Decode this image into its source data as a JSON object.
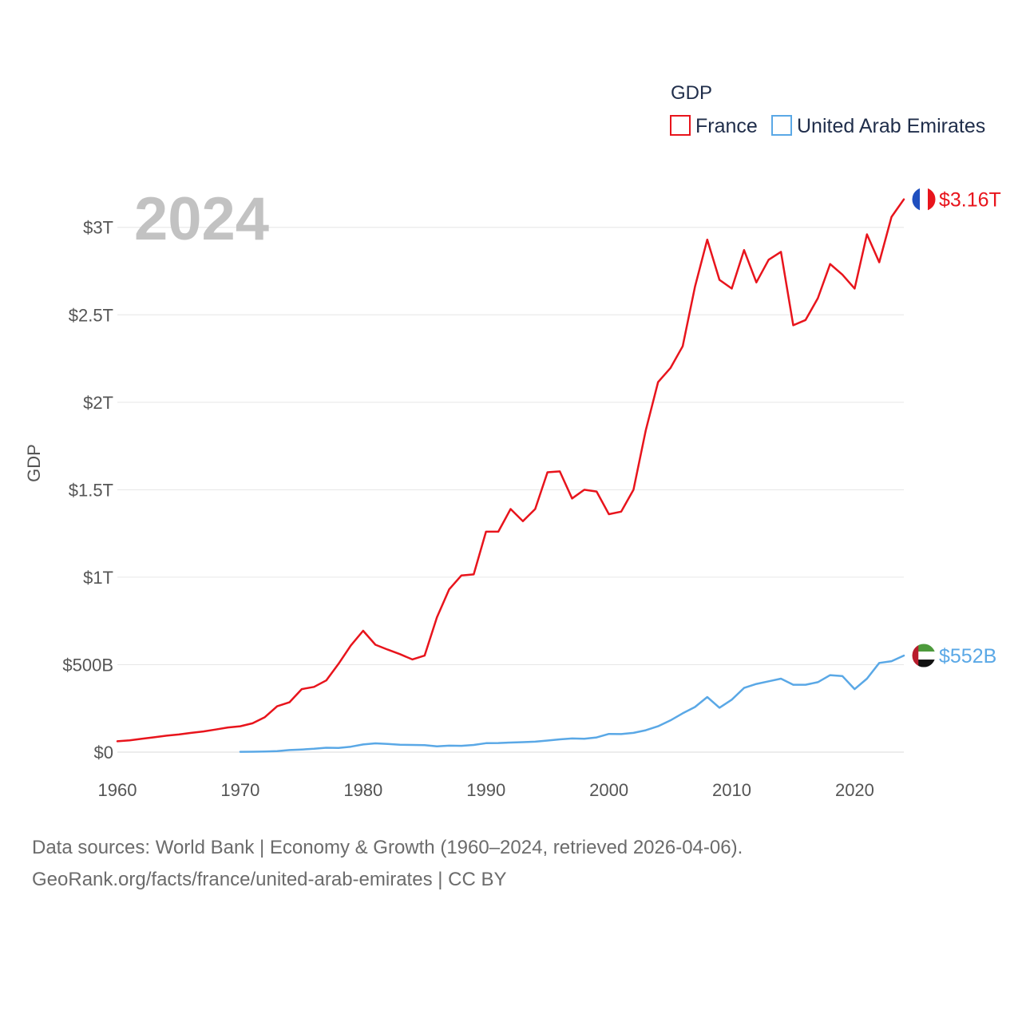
{
  "chart_data": {
    "type": "line",
    "legend_title": "GDP",
    "ylabel": "GDP",
    "watermark_year": "2024",
    "xlim": [
      1960,
      2024
    ],
    "ylim": [
      0,
      3300000000000
    ],
    "x_ticks": [
      {
        "value": 1960,
        "label": "1960"
      },
      {
        "value": 1970,
        "label": "1970"
      },
      {
        "value": 1980,
        "label": "1980"
      },
      {
        "value": 1990,
        "label": "1990"
      },
      {
        "value": 2000,
        "label": "2000"
      },
      {
        "value": 2010,
        "label": "2010"
      },
      {
        "value": 2020,
        "label": "2020"
      }
    ],
    "y_ticks": [
      {
        "value": 0,
        "label": "$0"
      },
      {
        "value": 500000000000,
        "label": "$500B"
      },
      {
        "value": 1000000000000,
        "label": "$1T"
      },
      {
        "value": 1500000000000,
        "label": "$1.5T"
      },
      {
        "value": 2000000000000,
        "label": "$2T"
      },
      {
        "value": 2500000000000,
        "label": "$2.5T"
      },
      {
        "value": 3000000000000,
        "label": "$3T"
      }
    ],
    "series": [
      {
        "name": "France",
        "color": "#e8141c",
        "end_label": "$3.16T",
        "flag": "france-flag",
        "x": [
          1960,
          1961,
          1962,
          1963,
          1964,
          1965,
          1966,
          1967,
          1968,
          1969,
          1970,
          1971,
          1972,
          1973,
          1974,
          1975,
          1976,
          1977,
          1978,
          1979,
          1980,
          1981,
          1982,
          1983,
          1984,
          1985,
          1986,
          1987,
          1988,
          1989,
          1990,
          1991,
          1992,
          1993,
          1994,
          1995,
          1996,
          1997,
          1998,
          1999,
          2000,
          2001,
          2002,
          2003,
          2004,
          2005,
          2006,
          2007,
          2008,
          2009,
          2010,
          2011,
          2012,
          2013,
          2014,
          2015,
          2016,
          2017,
          2018,
          2019,
          2020,
          2021,
          2022,
          2023,
          2024
        ],
        "values": [
          62000000000.0,
          67000000000.0,
          76000000000.0,
          85000000000.0,
          94000000000.0,
          101000000000.0,
          110000000000.0,
          118000000000.0,
          129000000000.0,
          141000000000.0,
          148000000000.0,
          165000000000.0,
          200000000000.0,
          262000000000.0,
          285000000000.0,
          360000000000.0,
          373000000000.0,
          410000000000.0,
          505000000000.0,
          610000000000.0,
          694000000000.0,
          614000000000.0,
          586000000000.0,
          560000000000.0,
          530000000000.0,
          552000000000.0,
          770000000000.0,
          930000000000.0,
          1010000000000.0,
          1016000000000.0,
          1260000000000.0,
          1260000000000.0,
          1390000000000.0,
          1320000000000.0,
          1390000000000.0,
          1600000000000.0,
          1605000000000.0,
          1450000000000.0,
          1500000000000.0,
          1490000000000.0,
          1360000000000.0,
          1375000000000.0,
          1500000000000.0,
          1840000000000.0,
          2115000000000.0,
          2195000000000.0,
          2320000000000.0,
          2660000000000.0,
          2930000000000.0,
          2700000000000.0,
          2650000000000.0,
          2870000000000.0,
          2685000000000.0,
          2815000000000.0,
          2860000000000.0,
          2440000000000.0,
          2470000000000.0,
          2595000000000.0,
          2790000000000.0,
          2730000000000.0,
          2650000000000.0,
          2960000000000.0,
          2800000000000.0,
          3060000000000.0,
          3160000000000.0
        ]
      },
      {
        "name": "United Arab Emirates",
        "color": "#5aa8e6",
        "end_label": "$552B",
        "flag": "uae-flag",
        "x": [
          1970,
          1971,
          1972,
          1973,
          1974,
          1975,
          1976,
          1977,
          1978,
          1979,
          1980,
          1981,
          1982,
          1983,
          1984,
          1985,
          1986,
          1987,
          1988,
          1989,
          1990,
          1991,
          1992,
          1993,
          1994,
          1995,
          1996,
          1997,
          1998,
          1999,
          2000,
          2001,
          2002,
          2003,
          2004,
          2005,
          2006,
          2007,
          2008,
          2009,
          2010,
          2011,
          2012,
          2013,
          2014,
          2015,
          2016,
          2017,
          2018,
          2019,
          2020,
          2021,
          2022,
          2023,
          2024
        ],
        "values": [
          2000000000.0,
          2500000000.0,
          3500000000.0,
          6000000000.0,
          12000000000.0,
          15000000000.0,
          19000000000.0,
          25000000000.0,
          24000000000.0,
          31000000000.0,
          44000000000.0,
          50000000000.0,
          47000000000.0,
          42000000000.0,
          41000000000.0,
          40000000000.0,
          33000000000.0,
          37000000000.0,
          36000000000.0,
          41000000000.0,
          51000000000.0,
          52000000000.0,
          55000000000.0,
          57000000000.0,
          60000000000.0,
          66000000000.0,
          73000000000.0,
          78000000000.0,
          76000000000.0,
          84000000000.0,
          104000000000.0,
          103000000000.0,
          110000000000.0,
          125000000000.0,
          148000000000.0,
          181000000000.0,
          222000000000.0,
          258000000000.0,
          315000000000.0,
          254000000000.0,
          300000000000.0,
          367000000000.0,
          390000000000.0,
          405000000000.0,
          420000000000.0,
          385000000000.0,
          385000000000.0,
          400000000000.0,
          440000000000.0,
          435000000000.0,
          360000000000.0,
          420000000000.0,
          510000000000.0,
          520000000000.0,
          552000000000.0
        ]
      }
    ]
  },
  "footer": {
    "line1": "Data sources: World Bank | Economy & Growth (1960–2024, retrieved 2026-04-06).",
    "line2": "GeoRank.org/facts/france/united-arab-emirates | CC BY"
  }
}
